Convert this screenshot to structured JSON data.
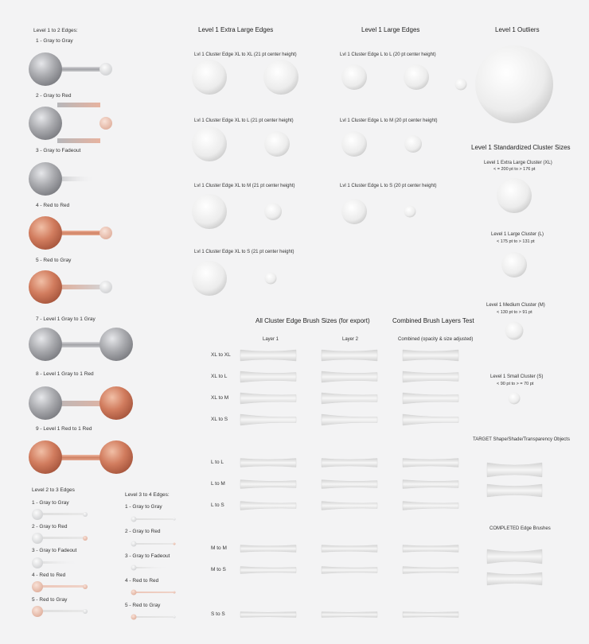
{
  "colors": {
    "background": "#f3f3f4",
    "gray": "#a8a9ad",
    "red": "#cf7a5c",
    "white": "#f2f2f2",
    "brush": "#e4e4e4"
  },
  "level1to2": {
    "title": "Level 1 to 2 Edges:",
    "items": [
      "1 - Gray to Gray",
      "2 - Gray to Red",
      "3 - Gray to Fadeout",
      "4 - Red to Red",
      "5 - Red to Gray",
      "7 - Level 1 Gray to 1 Gray",
      "8 - Level 1 Gray to 1 Red",
      "9 - Level 1 Red to 1 Red"
    ]
  },
  "level2to3": {
    "title": "Level 2 to 3 Edges",
    "items": [
      "1 - Gray to Gray",
      "2 - Gray to Red",
      "3 - Gray to Fadeout",
      "4 - Red to Red",
      "5 - Red to Gray"
    ]
  },
  "level3to4": {
    "title": "Level 3 to 4 Edges:",
    "items": [
      "1 - Gray to Gray",
      "2 - Gray to Red",
      "3 - Gray to Fadeout",
      "4 - Red to Red",
      "5 - Red to Gray"
    ]
  },
  "xl_edges": {
    "title": "Level 1 Extra Large Edges",
    "captions": [
      "Lvl 1 Cluster Edge XL to XL (21 pt center height)",
      "Lvl 1 Cluster Edge XL to L (21 pt center height)",
      "Lvl 1 Cluster Edge XL to M (21 pt center height)",
      "Lvl 1 Cluster Edge XL to S (21 pt center height)"
    ]
  },
  "large_edges": {
    "title": "Level 1 Large Edges",
    "captions": [
      "Lvl 1 Cluster Edge L to L (20 pt center height)",
      "Lvl 1 Cluster Edge L to M (20 pt center height)",
      "Lvl 1 Cluster Edge L to S (20 pt center height)"
    ]
  },
  "outliers": {
    "title": "Level 1 Outliers"
  },
  "cluster_sizes": {
    "title": "Level 1 Standardized Cluster Sizes",
    "items": [
      {
        "name": "Level 1 Extra Large Cluster (XL)",
        "range": "< = 200 pt  to  > 176 pt"
      },
      {
        "name": "Level 1 Large Cluster (L)",
        "range": "< 175 pt  to  > 131 pt"
      },
      {
        "name": "Level 1 Medium Cluster (M)",
        "range": "< 130 pt  to  > 91 pt"
      },
      {
        "name": "Level 1 Small Cluster (S)",
        "range": "< 90 pt  to  > = 70 pt"
      }
    ]
  },
  "brushes": {
    "title": "All Cluster Edge Brush Sizes (for export)",
    "combined_title": "Combined Brush Layers Test",
    "col1": "Layer 1",
    "col2": "Layer 2",
    "col3": "Combined (opacity & size adjusted)",
    "rows": [
      "XL to XL",
      "XL to L",
      "XL to M",
      "XL to S",
      "L to L",
      "L to M",
      "L to S",
      "M to M",
      "M to S",
      "S to S"
    ]
  },
  "target": {
    "title": "TARGET Shape/Shade/Transparency Objects"
  },
  "completed": {
    "title": "COMPLETED Edge Brushes"
  }
}
